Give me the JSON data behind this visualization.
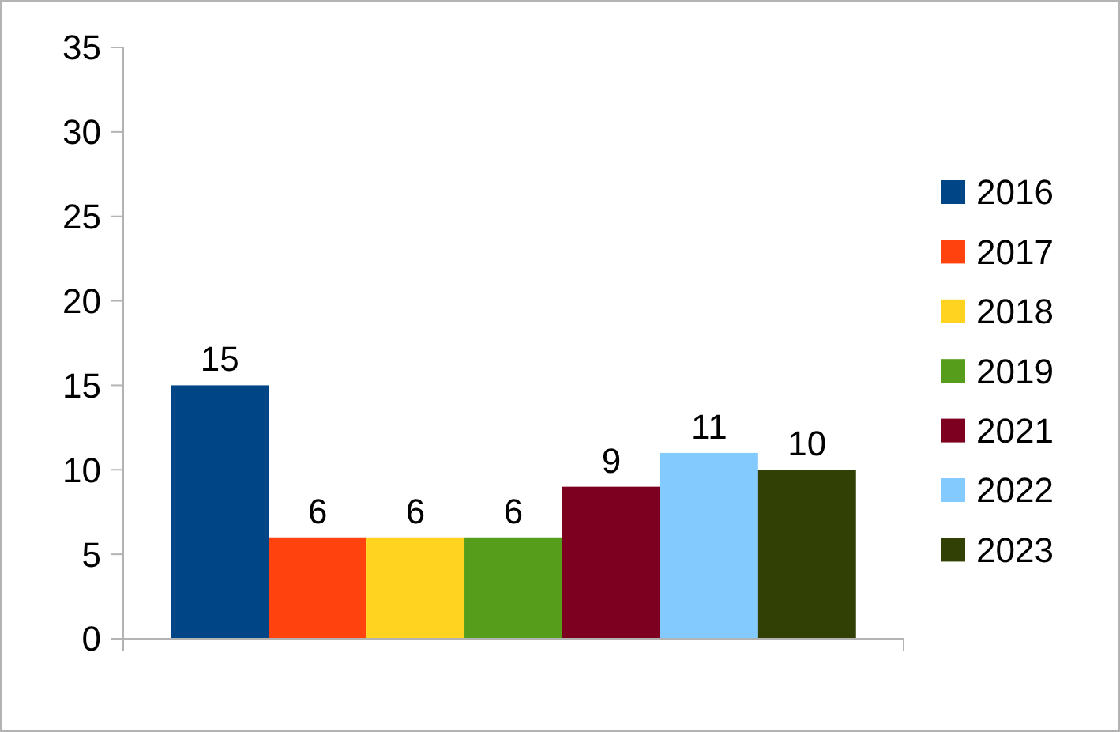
{
  "chart_data": {
    "type": "bar",
    "categories": [
      null
    ],
    "series": [
      {
        "name": "2016",
        "color": "#004586",
        "values": [
          15
        ]
      },
      {
        "name": "2017",
        "color": "#ff420e",
        "values": [
          6
        ]
      },
      {
        "name": "2018",
        "color": "#ffd320",
        "values": [
          6
        ]
      },
      {
        "name": "2019",
        "color": "#579d1c",
        "values": [
          6
        ]
      },
      {
        "name": "2021",
        "color": "#7e0021",
        "values": [
          9
        ]
      },
      {
        "name": "2022",
        "color": "#83caff",
        "values": [
          11
        ]
      },
      {
        "name": "2023",
        "color": "#314004",
        "values": [
          10
        ]
      }
    ],
    "ylim": [
      0,
      35
    ],
    "yticks": [
      0,
      5,
      10,
      15,
      20,
      25,
      30,
      35
    ],
    "data_labels": true,
    "legend": "right",
    "grid": false
  }
}
